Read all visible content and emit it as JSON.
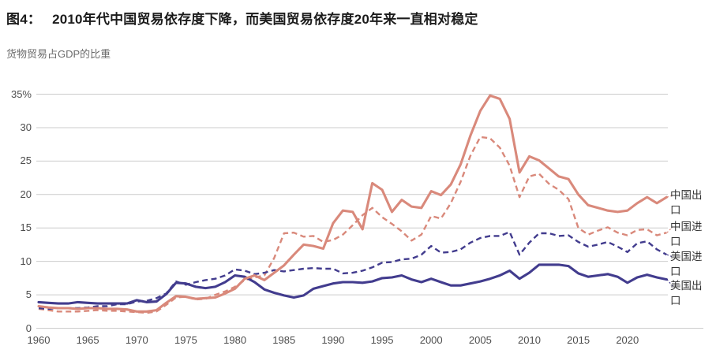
{
  "header": {
    "figure_label": "图4：",
    "title": "2010年代中国贸易依存度下降，而美国贸易依存度20年来一直相对稳定",
    "subtitle": "货物贸易占GDP的比重"
  },
  "colors": {
    "china": "#d9897b",
    "us": "#423c8e",
    "gridline": "#cccccc",
    "axis_text": "#4d4d4d"
  },
  "chart_data": {
    "type": "line",
    "title": "图4： 2010年代中国贸易依存度下降，而美国贸易依存度20年来一直相对稳定",
    "subtitle": "货物贸易占GDP的比重",
    "xlabel": "",
    "ylabel": "货物贸易占GDP的比重 (%)",
    "xlim": [
      1960,
      2024
    ],
    "ylim": [
      0,
      35
    ],
    "grid": true,
    "legend_position": "right-end-labels",
    "years": [
      1960,
      1961,
      1962,
      1963,
      1964,
      1965,
      1966,
      1967,
      1968,
      1969,
      1970,
      1971,
      1972,
      1973,
      1974,
      1975,
      1976,
      1977,
      1978,
      1979,
      1980,
      1981,
      1982,
      1983,
      1984,
      1985,
      1986,
      1987,
      1988,
      1989,
      1990,
      1991,
      1992,
      1993,
      1994,
      1995,
      1996,
      1997,
      1998,
      1999,
      2000,
      2001,
      2002,
      2003,
      2004,
      2005,
      2006,
      2007,
      2008,
      2009,
      2010,
      2011,
      2012,
      2013,
      2014,
      2015,
      2016,
      2017,
      2018,
      2019,
      2020,
      2021,
      2022,
      2023,
      2024
    ],
    "yticks": [
      {
        "label": "35%",
        "value": 35
      },
      {
        "label": "30",
        "value": 30
      },
      {
        "label": "25",
        "value": 25
      },
      {
        "label": "20",
        "value": 20
      },
      {
        "label": "15",
        "value": 15
      },
      {
        "label": "10",
        "value": 10
      },
      {
        "label": "5",
        "value": 5
      },
      {
        "label": "0",
        "value": 0
      }
    ],
    "xticks": [
      "1960",
      "1965",
      "1970",
      "1975",
      "1980",
      "1985",
      "1990",
      "1995",
      "2000",
      "2005",
      "2010",
      "2015",
      "2020"
    ],
    "series": [
      {
        "name": "中国出口",
        "key": "china-exports",
        "color": "#d9897b",
        "style": "solid",
        "values": [
          3.3,
          3.1,
          3.0,
          3.0,
          2.9,
          3.0,
          3.0,
          2.9,
          2.9,
          2.8,
          2.5,
          2.5,
          2.7,
          3.8,
          4.8,
          4.7,
          4.4,
          4.5,
          4.6,
          5.2,
          5.9,
          7.4,
          7.9,
          7.2,
          8.3,
          9.4,
          11.0,
          12.5,
          12.3,
          11.9,
          15.7,
          17.6,
          17.4,
          14.8,
          21.7,
          20.7,
          17.4,
          19.2,
          18.2,
          18.0,
          20.5,
          19.9,
          21.5,
          24.5,
          28.8,
          32.5,
          34.8,
          34.3,
          31.3,
          23.3,
          25.7,
          25.1,
          23.9,
          22.7,
          22.3,
          20.0,
          18.4,
          18.0,
          17.6,
          17.4,
          17.6,
          18.7,
          19.6,
          18.7,
          19.6
        ]
      },
      {
        "name": "中国进口",
        "key": "china-imports",
        "color": "#d9897b",
        "style": "dashed",
        "values": [
          2.9,
          2.7,
          2.5,
          2.5,
          2.5,
          2.6,
          2.7,
          2.6,
          2.6,
          2.5,
          2.4,
          2.3,
          2.5,
          3.5,
          4.6,
          4.7,
          4.3,
          4.4,
          5.0,
          5.5,
          6.2,
          7.2,
          7.6,
          7.9,
          10.5,
          14.2,
          14.3,
          13.7,
          13.8,
          12.9,
          13.2,
          14.0,
          15.4,
          16.9,
          18.0,
          16.6,
          15.6,
          14.5,
          13.1,
          14.0,
          16.8,
          16.4,
          18.7,
          21.9,
          25.8,
          28.6,
          28.4,
          27.0,
          24.3,
          19.6,
          22.7,
          23.1,
          21.6,
          20.7,
          19.3,
          15.0,
          14.0,
          14.6,
          15.1,
          14.3,
          13.9,
          14.7,
          14.8,
          13.9,
          14.3
        ]
      },
      {
        "name": "美国进口",
        "key": "us-imports",
        "color": "#423c8e",
        "style": "dashed",
        "values": [
          3.0,
          2.9,
          3.0,
          3.0,
          3.0,
          3.1,
          3.3,
          3.3,
          3.6,
          3.6,
          4.0,
          4.1,
          4.5,
          5.2,
          7.0,
          6.5,
          6.9,
          7.2,
          7.4,
          7.9,
          8.8,
          8.6,
          8.1,
          8.3,
          8.7,
          8.5,
          8.7,
          8.9,
          9.0,
          8.9,
          8.9,
          8.2,
          8.3,
          8.6,
          9.1,
          9.8,
          9.9,
          10.3,
          10.4,
          11.0,
          12.3,
          11.3,
          11.4,
          11.8,
          12.8,
          13.5,
          13.8,
          13.8,
          14.4,
          11.0,
          12.8,
          14.2,
          14.2,
          13.8,
          13.9,
          12.9,
          12.2,
          12.5,
          12.9,
          12.2,
          11.4,
          12.7,
          13.0,
          11.8,
          11.0
        ]
      },
      {
        "name": "美国出口",
        "key": "us-exports",
        "color": "#423c8e",
        "style": "solid",
        "values": [
          3.9,
          3.8,
          3.7,
          3.7,
          3.9,
          3.8,
          3.7,
          3.7,
          3.7,
          3.7,
          4.2,
          3.9,
          4.0,
          5.1,
          6.8,
          6.7,
          6.2,
          6.0,
          6.2,
          6.9,
          7.9,
          7.7,
          6.9,
          5.8,
          5.3,
          4.9,
          4.6,
          4.9,
          5.9,
          6.3,
          6.7,
          6.9,
          6.9,
          6.8,
          7.0,
          7.5,
          7.6,
          7.9,
          7.3,
          6.9,
          7.4,
          6.9,
          6.4,
          6.4,
          6.7,
          7.0,
          7.4,
          7.9,
          8.6,
          7.4,
          8.3,
          9.5,
          9.5,
          9.5,
          9.3,
          8.2,
          7.7,
          7.9,
          8.1,
          7.7,
          6.8,
          7.6,
          8.0,
          7.6,
          7.3
        ]
      }
    ]
  }
}
